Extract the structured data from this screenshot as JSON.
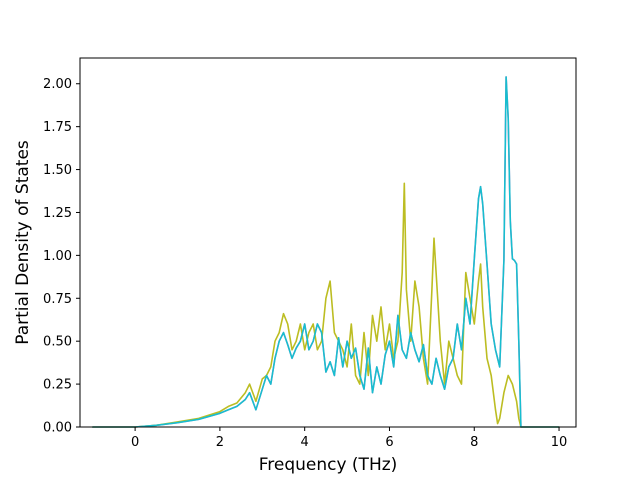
{
  "chart_data": {
    "type": "line",
    "title": "",
    "xlabel": "Frequency (THz)",
    "ylabel": "Partial Density of States",
    "xlim": [
      -1.3,
      10.4
    ],
    "ylim": [
      0.0,
      2.15
    ],
    "grid": false,
    "legend": "none",
    "x_ticks": [
      0,
      2,
      4,
      6,
      8,
      10
    ],
    "x_tick_labels": [
      "0",
      "2",
      "4",
      "6",
      "8",
      "10"
    ],
    "y_ticks": [
      0.0,
      0.25,
      0.5,
      0.75,
      1.0,
      1.25,
      1.5,
      1.75,
      2.0
    ],
    "y_tick_labels": [
      "0.00",
      "0.25",
      "0.50",
      "0.75",
      "1.00",
      "1.25",
      "1.50",
      "1.75",
      "2.00"
    ],
    "series": [
      {
        "color": "#e377c2",
        "x": [
          -1.0,
          -0.5,
          0.0,
          0.5,
          1.0,
          1.5,
          2.0,
          2.2,
          2.4,
          2.6,
          2.7,
          2.85,
          3.0,
          3.1,
          3.2,
          3.3,
          3.4,
          3.5,
          3.6,
          3.7,
          3.8,
          3.9,
          4.0,
          4.1,
          4.2,
          4.3,
          4.4,
          4.5,
          4.6,
          4.7,
          4.8,
          4.9,
          5.0,
          5.1,
          5.2,
          5.3,
          5.4,
          5.5,
          5.6,
          5.7,
          5.8,
          5.9,
          6.0,
          6.1,
          6.2,
          6.3,
          6.4,
          6.5,
          6.6,
          6.7,
          6.8,
          6.9,
          7.0,
          7.1,
          7.2,
          7.3,
          7.4,
          7.5,
          7.6,
          7.7,
          7.8,
          7.9,
          8.0,
          8.1,
          8.15,
          8.2,
          8.3,
          8.4,
          8.5,
          8.6,
          8.7,
          8.75,
          8.8,
          8.85,
          8.9,
          8.95,
          9.0,
          9.05,
          9.1,
          9.3,
          10.0
        ],
        "y": [
          0.0,
          0.0,
          0.0,
          0.01,
          0.025,
          0.045,
          0.08,
          0.1,
          0.12,
          0.16,
          0.2,
          0.1,
          0.22,
          0.3,
          0.25,
          0.4,
          0.5,
          0.55,
          0.48,
          0.4,
          0.46,
          0.5,
          0.6,
          0.45,
          0.5,
          0.6,
          0.55,
          0.32,
          0.38,
          0.3,
          0.52,
          0.35,
          0.5,
          0.4,
          0.46,
          0.3,
          0.22,
          0.46,
          0.2,
          0.35,
          0.25,
          0.42,
          0.5,
          0.35,
          0.65,
          0.45,
          0.4,
          0.55,
          0.45,
          0.38,
          0.48,
          0.3,
          0.25,
          0.4,
          0.3,
          0.22,
          0.35,
          0.4,
          0.6,
          0.45,
          0.75,
          0.6,
          0.98,
          1.33,
          1.4,
          1.3,
          0.95,
          0.6,
          0.45,
          0.35,
          0.97,
          2.04,
          1.8,
          1.2,
          0.98,
          0.97,
          0.95,
          0.5,
          0.0,
          0.0,
          0.0
        ]
      },
      {
        "color": "#bcbd22",
        "x": [
          -1.0,
          -0.5,
          0.0,
          0.5,
          1.0,
          1.5,
          2.0,
          2.2,
          2.4,
          2.6,
          2.7,
          2.85,
          3.0,
          3.1,
          3.2,
          3.3,
          3.4,
          3.5,
          3.6,
          3.7,
          3.8,
          3.9,
          4.0,
          4.1,
          4.2,
          4.3,
          4.4,
          4.5,
          4.6,
          4.7,
          4.8,
          4.9,
          5.0,
          5.1,
          5.2,
          5.3,
          5.4,
          5.5,
          5.6,
          5.7,
          5.8,
          5.9,
          6.0,
          6.1,
          6.2,
          6.3,
          6.35,
          6.4,
          6.5,
          6.6,
          6.7,
          6.8,
          6.9,
          7.0,
          7.05,
          7.1,
          7.2,
          7.3,
          7.4,
          7.5,
          7.6,
          7.7,
          7.8,
          7.9,
          8.0,
          8.1,
          8.15,
          8.2,
          8.3,
          8.4,
          8.5,
          8.55,
          8.6,
          8.7,
          8.8,
          8.9,
          9.0,
          9.05,
          9.1,
          9.3,
          10.0
        ],
        "y": [
          0.0,
          0.0,
          0.0,
          0.01,
          0.03,
          0.05,
          0.09,
          0.12,
          0.14,
          0.2,
          0.25,
          0.15,
          0.28,
          0.3,
          0.35,
          0.5,
          0.55,
          0.66,
          0.6,
          0.45,
          0.5,
          0.6,
          0.45,
          0.55,
          0.6,
          0.45,
          0.5,
          0.75,
          0.85,
          0.55,
          0.5,
          0.45,
          0.35,
          0.6,
          0.3,
          0.25,
          0.55,
          0.3,
          0.65,
          0.5,
          0.7,
          0.45,
          0.6,
          0.4,
          0.5,
          0.9,
          1.42,
          0.8,
          0.5,
          0.85,
          0.7,
          0.4,
          0.25,
          0.8,
          1.1,
          0.9,
          0.5,
          0.25,
          0.5,
          0.4,
          0.3,
          0.25,
          0.9,
          0.75,
          0.6,
          0.85,
          0.95,
          0.7,
          0.4,
          0.3,
          0.1,
          0.02,
          0.05,
          0.2,
          0.3,
          0.25,
          0.15,
          0.05,
          0.0,
          0.0,
          0.0
        ]
      },
      {
        "color": "#17becf",
        "x": [
          -1.0,
          -0.5,
          0.0,
          0.5,
          1.0,
          1.5,
          2.0,
          2.2,
          2.4,
          2.6,
          2.7,
          2.85,
          3.0,
          3.1,
          3.2,
          3.3,
          3.4,
          3.5,
          3.6,
          3.7,
          3.8,
          3.9,
          4.0,
          4.1,
          4.2,
          4.3,
          4.4,
          4.5,
          4.6,
          4.7,
          4.8,
          4.9,
          5.0,
          5.1,
          5.2,
          5.3,
          5.4,
          5.5,
          5.6,
          5.7,
          5.8,
          5.9,
          6.0,
          6.1,
          6.2,
          6.3,
          6.4,
          6.5,
          6.6,
          6.7,
          6.8,
          6.9,
          7.0,
          7.1,
          7.2,
          7.3,
          7.4,
          7.5,
          7.6,
          7.7,
          7.8,
          7.9,
          8.0,
          8.1,
          8.15,
          8.2,
          8.3,
          8.4,
          8.5,
          8.6,
          8.7,
          8.75,
          8.8,
          8.85,
          8.9,
          8.95,
          9.0,
          9.05,
          9.1,
          9.3,
          10.0
        ],
        "y": [
          0.0,
          0.0,
          0.0,
          0.01,
          0.025,
          0.045,
          0.08,
          0.1,
          0.12,
          0.16,
          0.2,
          0.1,
          0.22,
          0.3,
          0.25,
          0.4,
          0.5,
          0.55,
          0.48,
          0.4,
          0.46,
          0.5,
          0.6,
          0.45,
          0.5,
          0.6,
          0.55,
          0.32,
          0.38,
          0.3,
          0.52,
          0.35,
          0.5,
          0.4,
          0.46,
          0.3,
          0.22,
          0.46,
          0.2,
          0.35,
          0.25,
          0.42,
          0.5,
          0.35,
          0.65,
          0.45,
          0.4,
          0.55,
          0.45,
          0.38,
          0.48,
          0.3,
          0.25,
          0.4,
          0.3,
          0.22,
          0.35,
          0.4,
          0.6,
          0.45,
          0.75,
          0.6,
          0.98,
          1.33,
          1.4,
          1.3,
          0.95,
          0.6,
          0.45,
          0.35,
          0.97,
          2.04,
          1.8,
          1.2,
          0.98,
          0.97,
          0.95,
          0.5,
          0.0,
          0.0,
          0.0
        ]
      }
    ]
  }
}
